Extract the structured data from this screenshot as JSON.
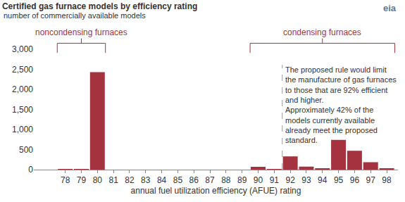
{
  "chart_data": {
    "type": "bar",
    "title": "Certified gas furnace models by efficiency rating",
    "subtitle": "number of commercially available models",
    "logo": "eia",
    "x_label": "annual fuel utilization efficiency (AFUE) rating",
    "categories": [
      "78",
      "79",
      "80",
      "81",
      "82",
      "83",
      "84",
      "85",
      "86",
      "87",
      "88",
      "89",
      "90",
      "91",
      "92",
      "93",
      "94",
      "95",
      "96",
      "97",
      "98"
    ],
    "values": [
      10,
      10,
      2430,
      0,
      0,
      0,
      0,
      0,
      0,
      0,
      0,
      0,
      70,
      15,
      330,
      75,
      20,
      740,
      470,
      185,
      20
    ],
    "color": "#a5333f",
    "ylim": [
      0,
      3000
    ],
    "yticks": [
      0,
      500,
      {
        "value": 1000,
        "label": "1,000"
      },
      {
        "value": 1500,
        "label": "1,500"
      },
      {
        "value": 2000,
        "label": "2,000"
      },
      {
        "value": 2500,
        "label": "2,500"
      },
      {
        "value": 3000,
        "label": "3,000"
      }
    ],
    "grid": false,
    "annotations": [
      {
        "text": "noncondensing furnaces",
        "from": "78",
        "to": "80"
      },
      {
        "text": "condensing furnaces",
        "from": "90",
        "to": "98"
      }
    ],
    "note": {
      "before": "92",
      "lines": [
        "The proposed rule would limit",
        "the manufacture of gas furnaces",
        "to those that are 92% efficient",
        "and higher.",
        "Approximately 42% of the",
        "models currently available",
        "already meet the proposed",
        "standard."
      ]
    }
  }
}
